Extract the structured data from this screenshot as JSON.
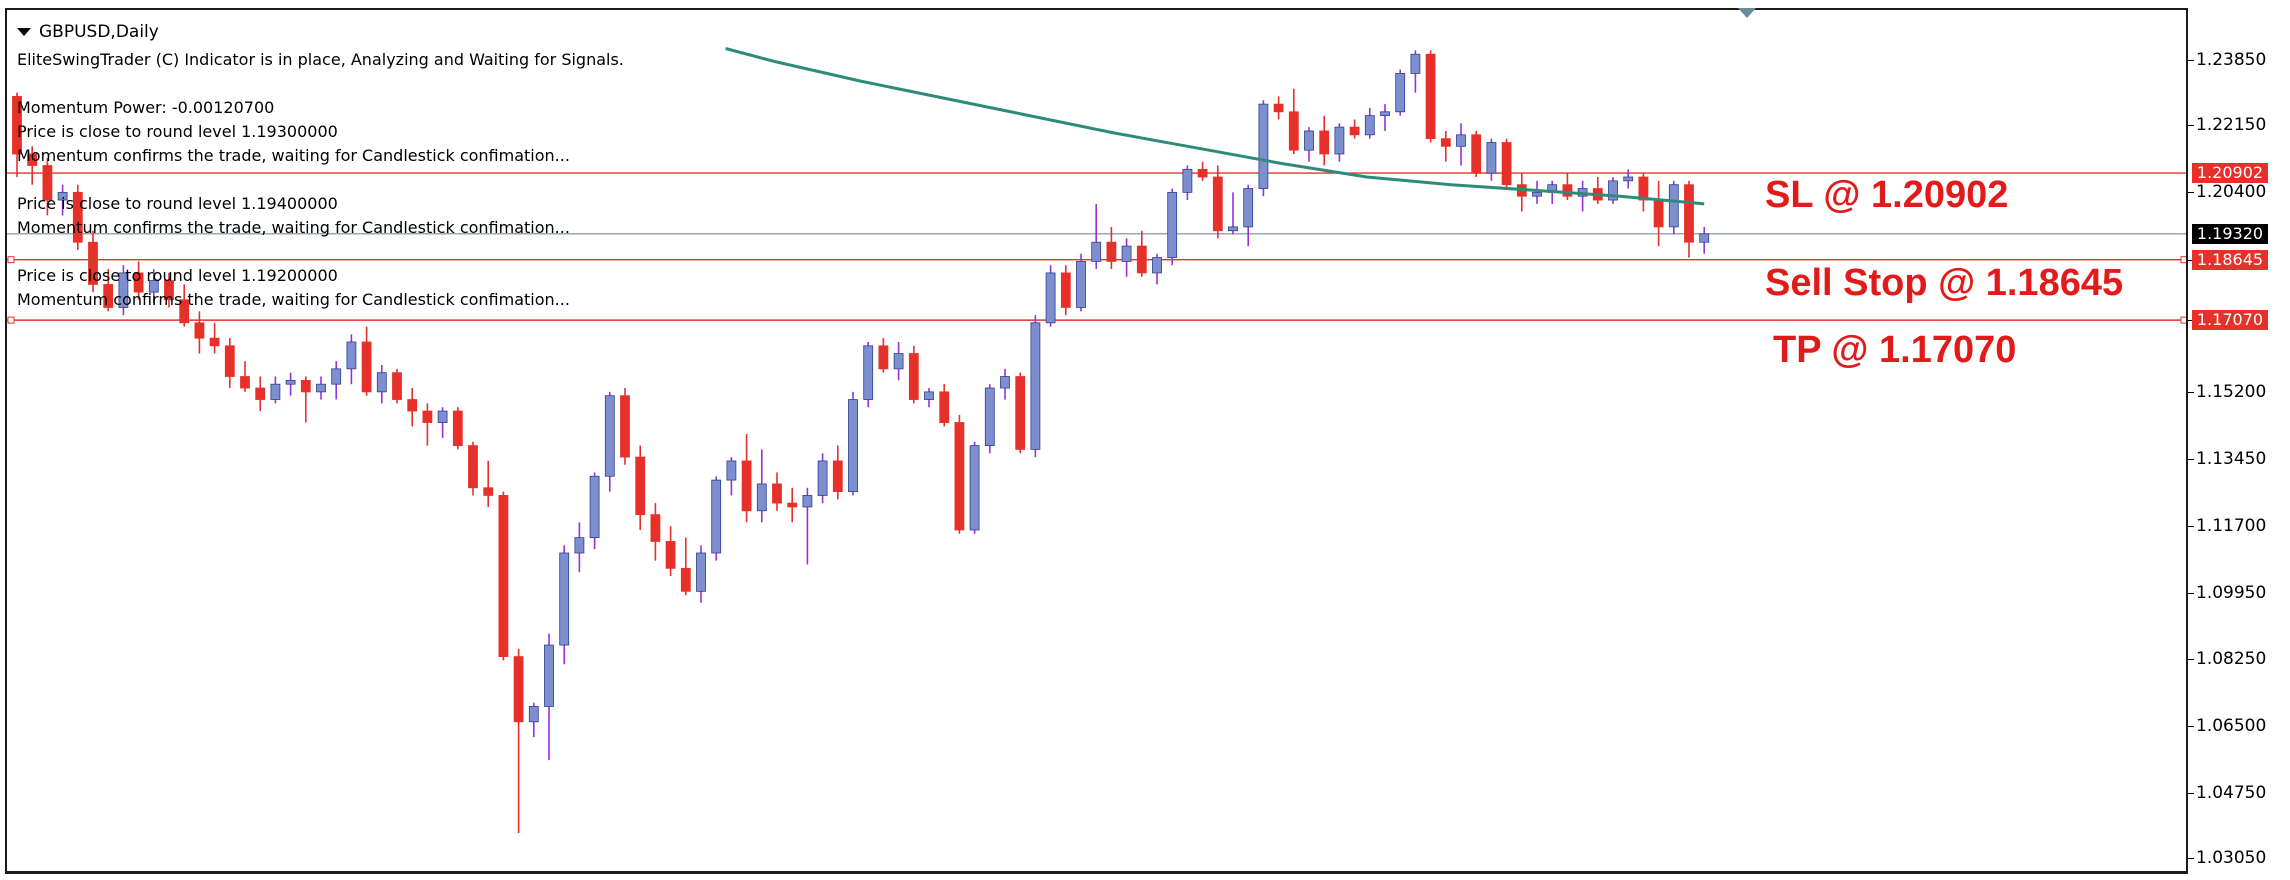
{
  "window": {
    "symbol_title": "GBPUSD,Daily"
  },
  "indicator": {
    "status": "EliteSwingTrader (C) Indicator is in place, Analyzing and Waiting for Signals.",
    "momentum_power": "Momentum Power: -0.00120700",
    "messages": [
      {
        "round": "Price is close to round level 1.19300000",
        "confirm": "Momentum confirms the trade, waiting for Candlestick confimation..."
      },
      {
        "round": "Price is close to round level 1.19400000",
        "confirm": "Momentum confirms the trade, waiting for Candlestick confimation..."
      },
      {
        "round": "Price is close to round level 1.19200000",
        "confirm": "Momentum confirms the trade, waiting for Candlestick confimation..."
      }
    ]
  },
  "trade_labels": {
    "sl": "SL @ 1.20902",
    "sell_stop": "Sell Stop @ 1.18645",
    "tp": "TP @ 1.17070"
  },
  "price_axis": {
    "ticks": [
      "1.23850",
      "1.22150",
      "1.20400",
      "1.18645",
      "1.17070",
      "1.15200",
      "1.13450",
      "1.11700",
      "1.09950",
      "1.08250",
      "1.06500",
      "1.04750",
      "1.03050"
    ],
    "tags": [
      {
        "text": "1.20902",
        "value": 1.20902,
        "bg": "#e8302a",
        "fg": "#ffffff"
      },
      {
        "text": "1.19320",
        "value": 1.1932,
        "bg": "#000000",
        "fg": "#ffffff"
      },
      {
        "text": "1.18645",
        "value": 1.18645,
        "bg": "#e8302a",
        "fg": "#ffffff"
      },
      {
        "text": "1.17070",
        "value": 1.1707,
        "bg": "#e8302a",
        "fg": "#ffffff"
      }
    ]
  },
  "colors": {
    "bull_body": "#7e8fd0",
    "bull_wick": "#9b30d9",
    "bear": "#e8302a",
    "ma_line": "#2e8b7a",
    "level_line": "#e8302a",
    "bid_line": "#7a8a96"
  },
  "chart_data": {
    "type": "candlestick",
    "symbol": "GBPUSD",
    "timeframe": "Daily",
    "ylim": [
      1.0305,
      1.2385
    ],
    "levels": {
      "sl": 1.20902,
      "bid": 1.1932,
      "sell_stop": 1.18645,
      "tp": 1.1707
    },
    "ohlc": [
      [
        1.229,
        1.23,
        1.208,
        1.214
      ],
      [
        1.214,
        1.216,
        1.206,
        1.211
      ],
      [
        1.211,
        1.213,
        1.198,
        1.202
      ],
      [
        1.202,
        1.206,
        1.198,
        1.204
      ],
      [
        1.204,
        1.206,
        1.189,
        1.191
      ],
      [
        1.191,
        1.194,
        1.178,
        1.18
      ],
      [
        1.18,
        1.184,
        1.173,
        1.174
      ],
      [
        1.174,
        1.185,
        1.172,
        1.183
      ],
      [
        1.183,
        1.186,
        1.176,
        1.178
      ],
      [
        1.178,
        1.184,
        1.175,
        1.181
      ],
      [
        1.181,
        1.183,
        1.174,
        1.176
      ],
      [
        1.176,
        1.18,
        1.169,
        1.17
      ],
      [
        1.17,
        1.173,
        1.162,
        1.166
      ],
      [
        1.166,
        1.17,
        1.162,
        1.164
      ],
      [
        1.164,
        1.166,
        1.153,
        1.156
      ],
      [
        1.156,
        1.16,
        1.152,
        1.153
      ],
      [
        1.153,
        1.156,
        1.147,
        1.15
      ],
      [
        1.15,
        1.156,
        1.149,
        1.154
      ],
      [
        1.154,
        1.157,
        1.151,
        1.155
      ],
      [
        1.155,
        1.156,
        1.144,
        1.152
      ],
      [
        1.152,
        1.156,
        1.15,
        1.154
      ],
      [
        1.154,
        1.16,
        1.15,
        1.158
      ],
      [
        1.158,
        1.167,
        1.154,
        1.165
      ],
      [
        1.165,
        1.169,
        1.151,
        1.152
      ],
      [
        1.152,
        1.159,
        1.149,
        1.157
      ],
      [
        1.157,
        1.158,
        1.149,
        1.15
      ],
      [
        1.15,
        1.153,
        1.143,
        1.147
      ],
      [
        1.147,
        1.149,
        1.138,
        1.144
      ],
      [
        1.144,
        1.148,
        1.14,
        1.147
      ],
      [
        1.147,
        1.148,
        1.137,
        1.138
      ],
      [
        1.138,
        1.139,
        1.125,
        1.127
      ],
      [
        1.127,
        1.134,
        1.122,
        1.125
      ],
      [
        1.125,
        1.126,
        1.082,
        1.083
      ],
      [
        1.083,
        1.085,
        1.037,
        1.066
      ],
      [
        1.066,
        1.071,
        1.062,
        1.07
      ],
      [
        1.07,
        1.089,
        1.056,
        1.086
      ],
      [
        1.086,
        1.112,
        1.081,
        1.11
      ],
      [
        1.11,
        1.118,
        1.105,
        1.114
      ],
      [
        1.114,
        1.131,
        1.111,
        1.13
      ],
      [
        1.13,
        1.152,
        1.126,
        1.151
      ],
      [
        1.151,
        1.153,
        1.133,
        1.135
      ],
      [
        1.135,
        1.138,
        1.116,
        1.12
      ],
      [
        1.12,
        1.123,
        1.108,
        1.113
      ],
      [
        1.113,
        1.117,
        1.104,
        1.106
      ],
      [
        1.106,
        1.114,
        1.099,
        1.1
      ],
      [
        1.1,
        1.112,
        1.097,
        1.11
      ],
      [
        1.11,
        1.13,
        1.108,
        1.129
      ],
      [
        1.129,
        1.135,
        1.125,
        1.134
      ],
      [
        1.134,
        1.141,
        1.118,
        1.121
      ],
      [
        1.121,
        1.137,
        1.118,
        1.128
      ],
      [
        1.128,
        1.131,
        1.121,
        1.123
      ],
      [
        1.123,
        1.127,
        1.118,
        1.122
      ],
      [
        1.122,
        1.127,
        1.107,
        1.125
      ],
      [
        1.125,
        1.136,
        1.123,
        1.134
      ],
      [
        1.134,
        1.138,
        1.124,
        1.126
      ],
      [
        1.126,
        1.152,
        1.125,
        1.15
      ],
      [
        1.15,
        1.165,
        1.148,
        1.164
      ],
      [
        1.164,
        1.166,
        1.157,
        1.158
      ],
      [
        1.158,
        1.165,
        1.155,
        1.162
      ],
      [
        1.162,
        1.164,
        1.149,
        1.15
      ],
      [
        1.15,
        1.153,
        1.148,
        1.152
      ],
      [
        1.152,
        1.154,
        1.143,
        1.144
      ],
      [
        1.144,
        1.146,
        1.115,
        1.116
      ],
      [
        1.116,
        1.139,
        1.115,
        1.138
      ],
      [
        1.138,
        1.154,
        1.136,
        1.153
      ],
      [
        1.153,
        1.158,
        1.15,
        1.156
      ],
      [
        1.156,
        1.157,
        1.136,
        1.137
      ],
      [
        1.137,
        1.172,
        1.135,
        1.17
      ],
      [
        1.17,
        1.185,
        1.169,
        1.183
      ],
      [
        1.183,
        1.185,
        1.172,
        1.174
      ],
      [
        1.174,
        1.188,
        1.173,
        1.186
      ],
      [
        1.186,
        1.201,
        1.184,
        1.191
      ],
      [
        1.191,
        1.195,
        1.184,
        1.186
      ],
      [
        1.186,
        1.192,
        1.182,
        1.19
      ],
      [
        1.19,
        1.194,
        1.182,
        1.183
      ],
      [
        1.183,
        1.188,
        1.18,
        1.187
      ],
      [
        1.187,
        1.205,
        1.185,
        1.204
      ],
      [
        1.204,
        1.211,
        1.202,
        1.21
      ],
      [
        1.21,
        1.212,
        1.207,
        1.208
      ],
      [
        1.208,
        1.211,
        1.192,
        1.194
      ],
      [
        1.194,
        1.204,
        1.193,
        1.195
      ],
      [
        1.195,
        1.206,
        1.19,
        1.205
      ],
      [
        1.205,
        1.228,
        1.203,
        1.227
      ],
      [
        1.227,
        1.229,
        1.223,
        1.225
      ],
      [
        1.225,
        1.231,
        1.214,
        1.215
      ],
      [
        1.215,
        1.221,
        1.212,
        1.22
      ],
      [
        1.22,
        1.224,
        1.211,
        1.214
      ],
      [
        1.214,
        1.222,
        1.212,
        1.221
      ],
      [
        1.221,
        1.223,
        1.218,
        1.219
      ],
      [
        1.219,
        1.226,
        1.218,
        1.224
      ],
      [
        1.224,
        1.227,
        1.22,
        1.225
      ],
      [
        1.225,
        1.236,
        1.224,
        1.235
      ],
      [
        1.235,
        1.241,
        1.23,
        1.24
      ],
      [
        1.24,
        1.241,
        1.217,
        1.218
      ],
      [
        1.218,
        1.22,
        1.212,
        1.216
      ],
      [
        1.216,
        1.222,
        1.211,
        1.219
      ],
      [
        1.219,
        1.22,
        1.208,
        1.209
      ],
      [
        1.209,
        1.218,
        1.207,
        1.217
      ],
      [
        1.217,
        1.218,
        1.205,
        1.206
      ],
      [
        1.206,
        1.209,
        1.199,
        1.203
      ],
      [
        1.203,
        1.207,
        1.201,
        1.204
      ],
      [
        1.204,
        1.207,
        1.201,
        1.206
      ],
      [
        1.206,
        1.209,
        1.202,
        1.203
      ],
      [
        1.203,
        1.207,
        1.199,
        1.205
      ],
      [
        1.205,
        1.208,
        1.201,
        1.202
      ],
      [
        1.202,
        1.208,
        1.201,
        1.207
      ],
      [
        1.207,
        1.21,
        1.205,
        1.208
      ],
      [
        1.208,
        1.209,
        1.199,
        1.202
      ],
      [
        1.202,
        1.207,
        1.19,
        1.195
      ],
      [
        1.195,
        1.207,
        1.193,
        1.206
      ],
      [
        1.206,
        1.207,
        1.187,
        1.191
      ],
      [
        1.191,
        1.195,
        1.188,
        1.1932
      ]
    ],
    "moving_average": [
      [
        0.42,
        1.2415
      ],
      [
        0.45,
        1.238
      ],
      [
        0.5,
        1.233
      ],
      [
        0.55,
        1.2285
      ],
      [
        0.6,
        1.224
      ],
      [
        0.65,
        1.2195
      ],
      [
        0.7,
        1.2155
      ],
      [
        0.75,
        1.2115
      ],
      [
        0.8,
        1.208
      ],
      [
        0.85,
        1.206
      ],
      [
        0.9,
        1.2045
      ],
      [
        0.95,
        1.203
      ],
      [
        1.0,
        1.201
      ]
    ]
  }
}
